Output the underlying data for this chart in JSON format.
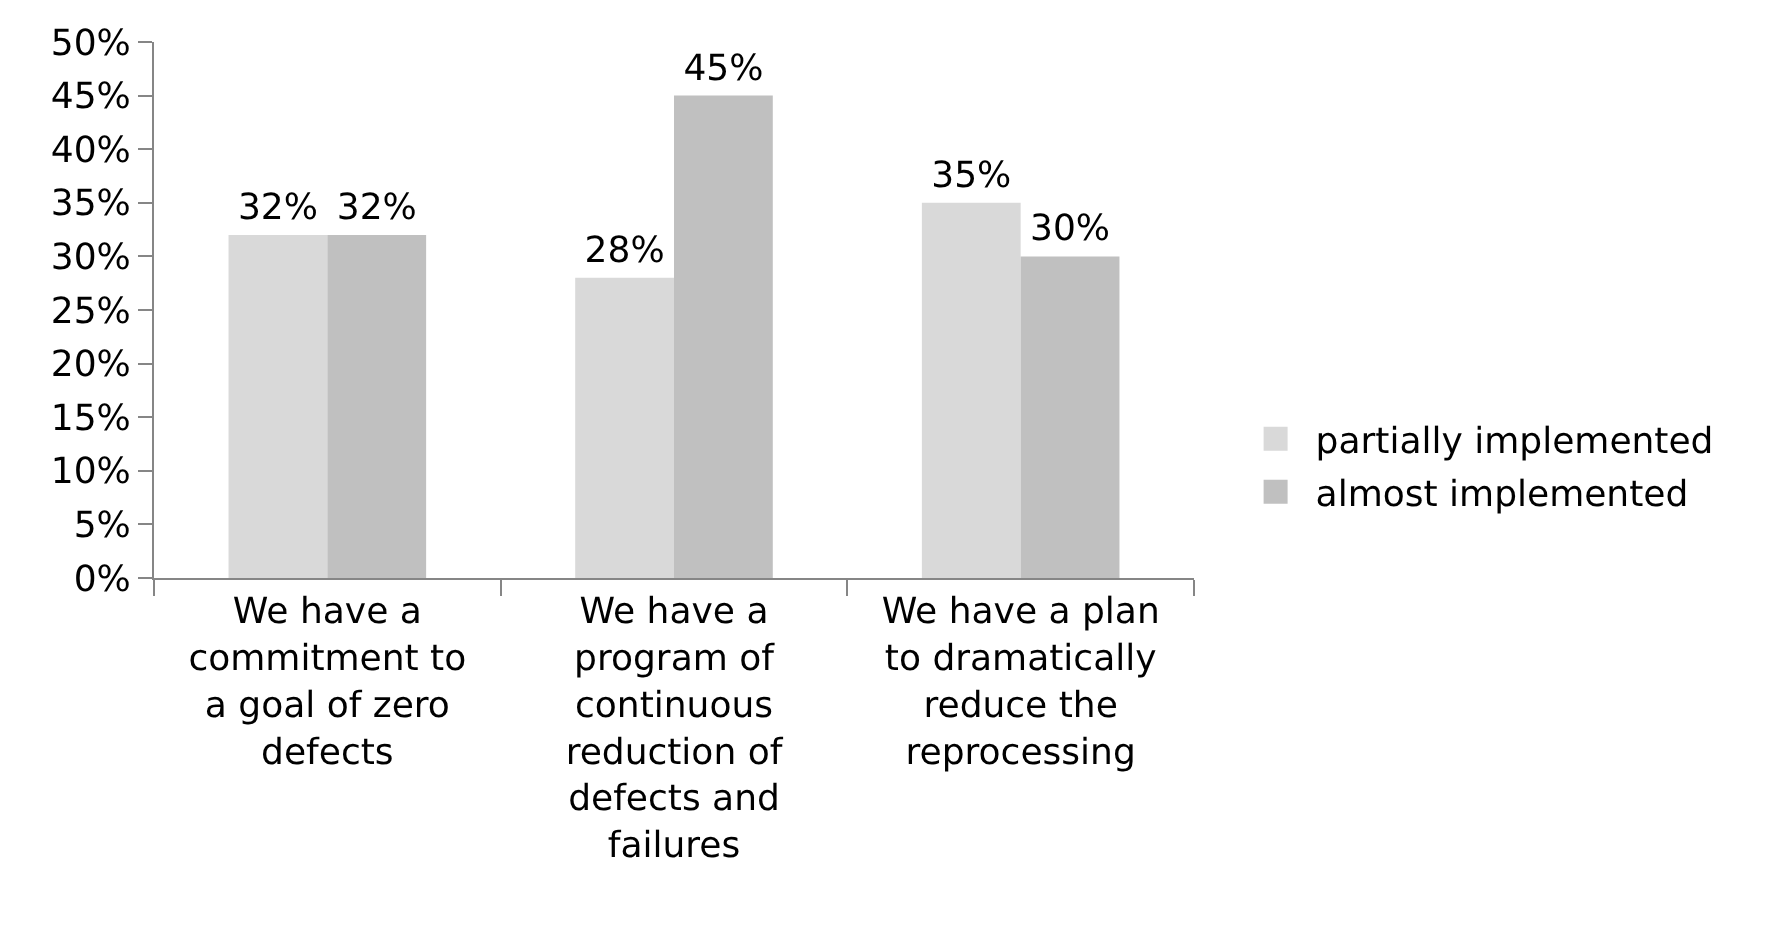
{
  "chart_data": {
    "type": "bar",
    "categories": [
      "We have a\ncommitment to\na goal of zero\ndefects",
      "We have a\nprogram of\ncontinuous\nreduction of\ndefects and\nfailures",
      "We have a plan\nto dramatically\nreduce the\nreprocessing"
    ],
    "series": [
      {
        "name": "partially implemented",
        "color": "#d9d9d9",
        "values": [
          32,
          28,
          35
        ],
        "value_labels": [
          "32%",
          "28%",
          "35%"
        ]
      },
      {
        "name": "almost implemented",
        "color": "#c0c0c0",
        "values": [
          32,
          45,
          30
        ],
        "value_labels": [
          "32%",
          "45%",
          "30%"
        ]
      }
    ],
    "ylim": [
      0,
      50
    ],
    "yticks": [
      {
        "value": 0,
        "label": "0%"
      },
      {
        "value": 5,
        "label": "5%"
      },
      {
        "value": 10,
        "label": "10%"
      },
      {
        "value": 15,
        "label": "15%"
      },
      {
        "value": 20,
        "label": "20%"
      },
      {
        "value": 25,
        "label": "25%"
      },
      {
        "value": 30,
        "label": "30%"
      },
      {
        "value": 35,
        "label": "35%"
      },
      {
        "value": 40,
        "label": "40%"
      },
      {
        "value": 45,
        "label": "45%"
      },
      {
        "value": 50,
        "label": "50%"
      }
    ],
    "grid": false,
    "legend": "right"
  }
}
